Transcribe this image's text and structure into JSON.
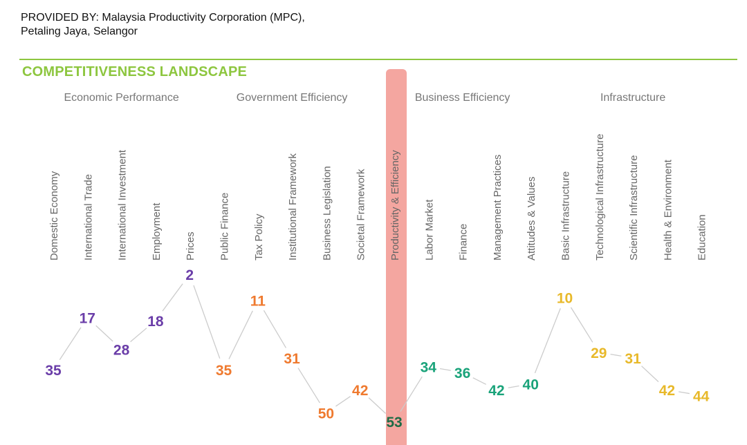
{
  "header": {
    "provided_line1": "PROVIDED BY: Malaysia Productivity Corporation (MPC),",
    "provided_line2": "Petaling Jaya, Selangor",
    "section_title": "COMPETITIVENESS LANDSCAPE"
  },
  "colors": {
    "accent": "#8dc63f",
    "group_label": "#777777",
    "category_label": "#666666",
    "connector": "#cccccc",
    "highlight_band": "#f4a6a0",
    "economic_performance": "#6a3da8",
    "government_efficiency": "#ef7a2f",
    "business_efficiency": "#1aa37a",
    "infrastructure": "#e8b92a",
    "highlighted_value": "#1e6b45"
  },
  "chart_data": {
    "type": "line",
    "title": "",
    "y_inverted": true,
    "ylim": [
      55,
      1
    ],
    "highlighted_category": "Productivity & Efficiency",
    "groups": [
      {
        "name": "Economic Performance",
        "color_key": "economic_performance",
        "categories": [
          "Domestic Economy",
          "International Trade",
          "International Investment",
          "Employment",
          "Prices"
        ],
        "values": [
          35,
          17,
          28,
          18,
          2
        ]
      },
      {
        "name": "Government Efficiency",
        "color_key": "government_efficiency",
        "categories": [
          "Public Finance",
          "Tax Policy",
          "Institutional Framework",
          "Business Legislation",
          "Societal Framework"
        ],
        "values": [
          35,
          11,
          31,
          50,
          42
        ]
      },
      {
        "name": "Business Efficiency",
        "color_key": "business_efficiency",
        "categories": [
          "Productivity & Efficiency",
          "Labor Market",
          "Finance",
          "Management Practices",
          "Attitudes & Values"
        ],
        "values": [
          53,
          34,
          36,
          42,
          40
        ]
      },
      {
        "name": "Infrastructure",
        "color_key": "infrastructure",
        "categories": [
          "Basic Infrastructure",
          "Technological Infrastructure",
          "Scientific Infrastructure",
          "Health & Environment",
          "Education"
        ],
        "values": [
          10,
          29,
          31,
          42,
          44
        ]
      }
    ]
  }
}
